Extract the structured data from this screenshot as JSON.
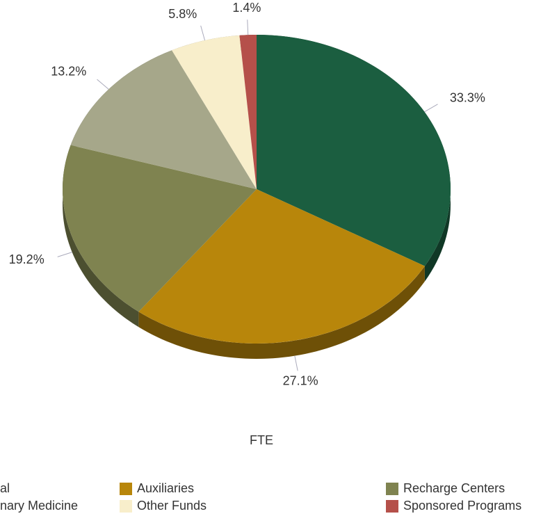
{
  "chart_data": {
    "type": "pie",
    "title": "FTE",
    "categories": [
      "al",
      "Auxiliaries",
      "Recharge Centers",
      "nary Medicine",
      "Other Funds",
      "Sponsored Programs"
    ],
    "values": [
      33.3,
      27.1,
      19.2,
      13.2,
      5.8,
      1.4
    ],
    "value_labels": [
      "33.3%",
      "27.1%",
      "19.2%",
      "13.2%",
      "5.8%",
      "1.4%"
    ],
    "colors": [
      "#1b5e40",
      "#b8860b",
      "#7f8350",
      "#a6a78a",
      "#f8eecb",
      "#b5504a"
    ],
    "legend": "bottom"
  }
}
